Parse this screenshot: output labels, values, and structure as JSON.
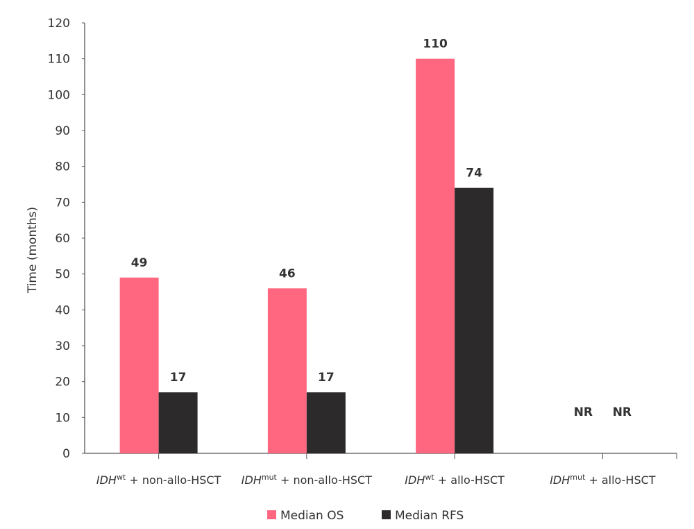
{
  "chart_data": {
    "type": "bar",
    "y_label": "Time (months)",
    "categories": [
      [
        "IDH",
        "wt",
        " + non-allo-HSCT"
      ],
      [
        "IDH",
        "mut",
        " + non-allo-HSCT"
      ],
      [
        "IDH",
        "wt",
        " + allo-HSCT"
      ],
      [
        "IDH",
        "mut",
        " + allo-HSCT"
      ]
    ],
    "series": [
      {
        "name": "Median OS",
        "color": "#ff6781",
        "values": [
          49,
          46,
          110,
          null
        ],
        "value_labels": [
          "49",
          "46",
          "110",
          "NR"
        ]
      },
      {
        "name": "Median RFS",
        "color": "#2d2a2b",
        "values": [
          17,
          17,
          74,
          null
        ],
        "value_labels": [
          "17",
          "17",
          "74",
          "NR"
        ]
      }
    ],
    "ylim": [
      0,
      120
    ],
    "yticks": [
      0,
      10,
      20,
      30,
      40,
      50,
      60,
      70,
      80,
      90,
      100,
      110,
      120
    ],
    "grid": false,
    "legend": "bottom"
  }
}
